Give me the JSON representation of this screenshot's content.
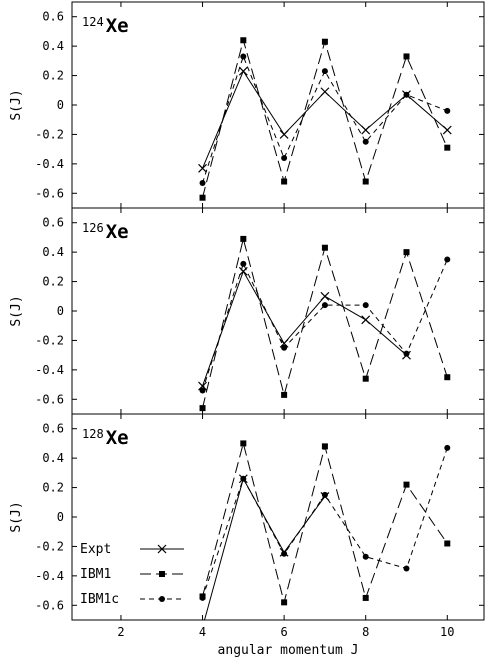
{
  "chart_data": {
    "type": "line",
    "xlabel": "angular momentum J",
    "ylabel": "S(J)",
    "xlim": [
      0.8,
      10.9
    ],
    "xticks": [
      2,
      4,
      6,
      8,
      10
    ],
    "ylim": [
      -0.7,
      0.7
    ],
    "yticks": [
      "0.6",
      "0.4",
      "0.2",
      "0",
      "-0.2",
      "-0.4",
      "-0.6"
    ],
    "legend": {
      "placement": "bottom-left",
      "entries": [
        "Expt",
        "IBM1",
        "IBM1c"
      ]
    },
    "panels": [
      {
        "mass": "124",
        "symbol": "Xe",
        "series": [
          {
            "name": "Expt",
            "x": [
              4,
              5,
              6,
              7,
              8,
              9,
              10
            ],
            "y": [
              -0.43,
              0.23,
              -0.2,
              0.09,
              -0.17,
              0.07,
              -0.17
            ]
          },
          {
            "name": "IBM1",
            "x": [
              4,
              5,
              6,
              7,
              8,
              9,
              10
            ],
            "y": [
              -0.63,
              0.44,
              -0.52,
              0.43,
              -0.52,
              0.33,
              -0.29
            ]
          },
          {
            "name": "IBM1c",
            "x": [
              4,
              5,
              6,
              7,
              8,
              9,
              10
            ],
            "y": [
              -0.53,
              0.33,
              -0.36,
              0.23,
              -0.25,
              0.07,
              -0.04
            ]
          }
        ]
      },
      {
        "mass": "126",
        "symbol": "Xe",
        "series": [
          {
            "name": "Expt",
            "x": [
              4,
              5,
              6,
              7,
              8,
              9
            ],
            "y": [
              -0.51,
              0.27,
              -0.22,
              0.1,
              -0.06,
              -0.3
            ]
          },
          {
            "name": "IBM1",
            "x": [
              4,
              5,
              6,
              7,
              8,
              9,
              10
            ],
            "y": [
              -0.66,
              0.49,
              -0.57,
              0.43,
              -0.46,
              0.4,
              -0.45
            ]
          },
          {
            "name": "IBM1c",
            "x": [
              4,
              5,
              6,
              7,
              8,
              9,
              10
            ],
            "y": [
              -0.54,
              0.32,
              -0.25,
              0.04,
              0.04,
              -0.29,
              0.35
            ]
          }
        ]
      },
      {
        "mass": "128",
        "symbol": "Xe",
        "series": [
          {
            "name": "Expt",
            "x": [
              4,
              5,
              6,
              7
            ],
            "y": [
              -0.75,
              0.26,
              -0.24,
              0.14
            ]
          },
          {
            "name": "IBM1",
            "x": [
              4,
              5,
              6,
              7,
              8,
              9,
              10
            ],
            "y": [
              -0.54,
              0.5,
              -0.58,
              0.48,
              -0.55,
              0.22,
              -0.18
            ]
          },
          {
            "name": "IBM1c",
            "x": [
              4,
              5,
              6,
              7,
              8,
              9,
              10
            ],
            "y": [
              -0.55,
              0.26,
              -0.25,
              0.15,
              -0.27,
              -0.35,
              0.47
            ]
          }
        ]
      }
    ]
  },
  "styles": {
    "axis_color": "#000000",
    "line_color": "#000000",
    "series": {
      "Expt": {
        "dash": "solid",
        "marker": "cross"
      },
      "IBM1": {
        "dash": "long-dash",
        "marker": "square"
      },
      "IBM1c": {
        "dash": "short-dash",
        "marker": "circle"
      }
    }
  }
}
